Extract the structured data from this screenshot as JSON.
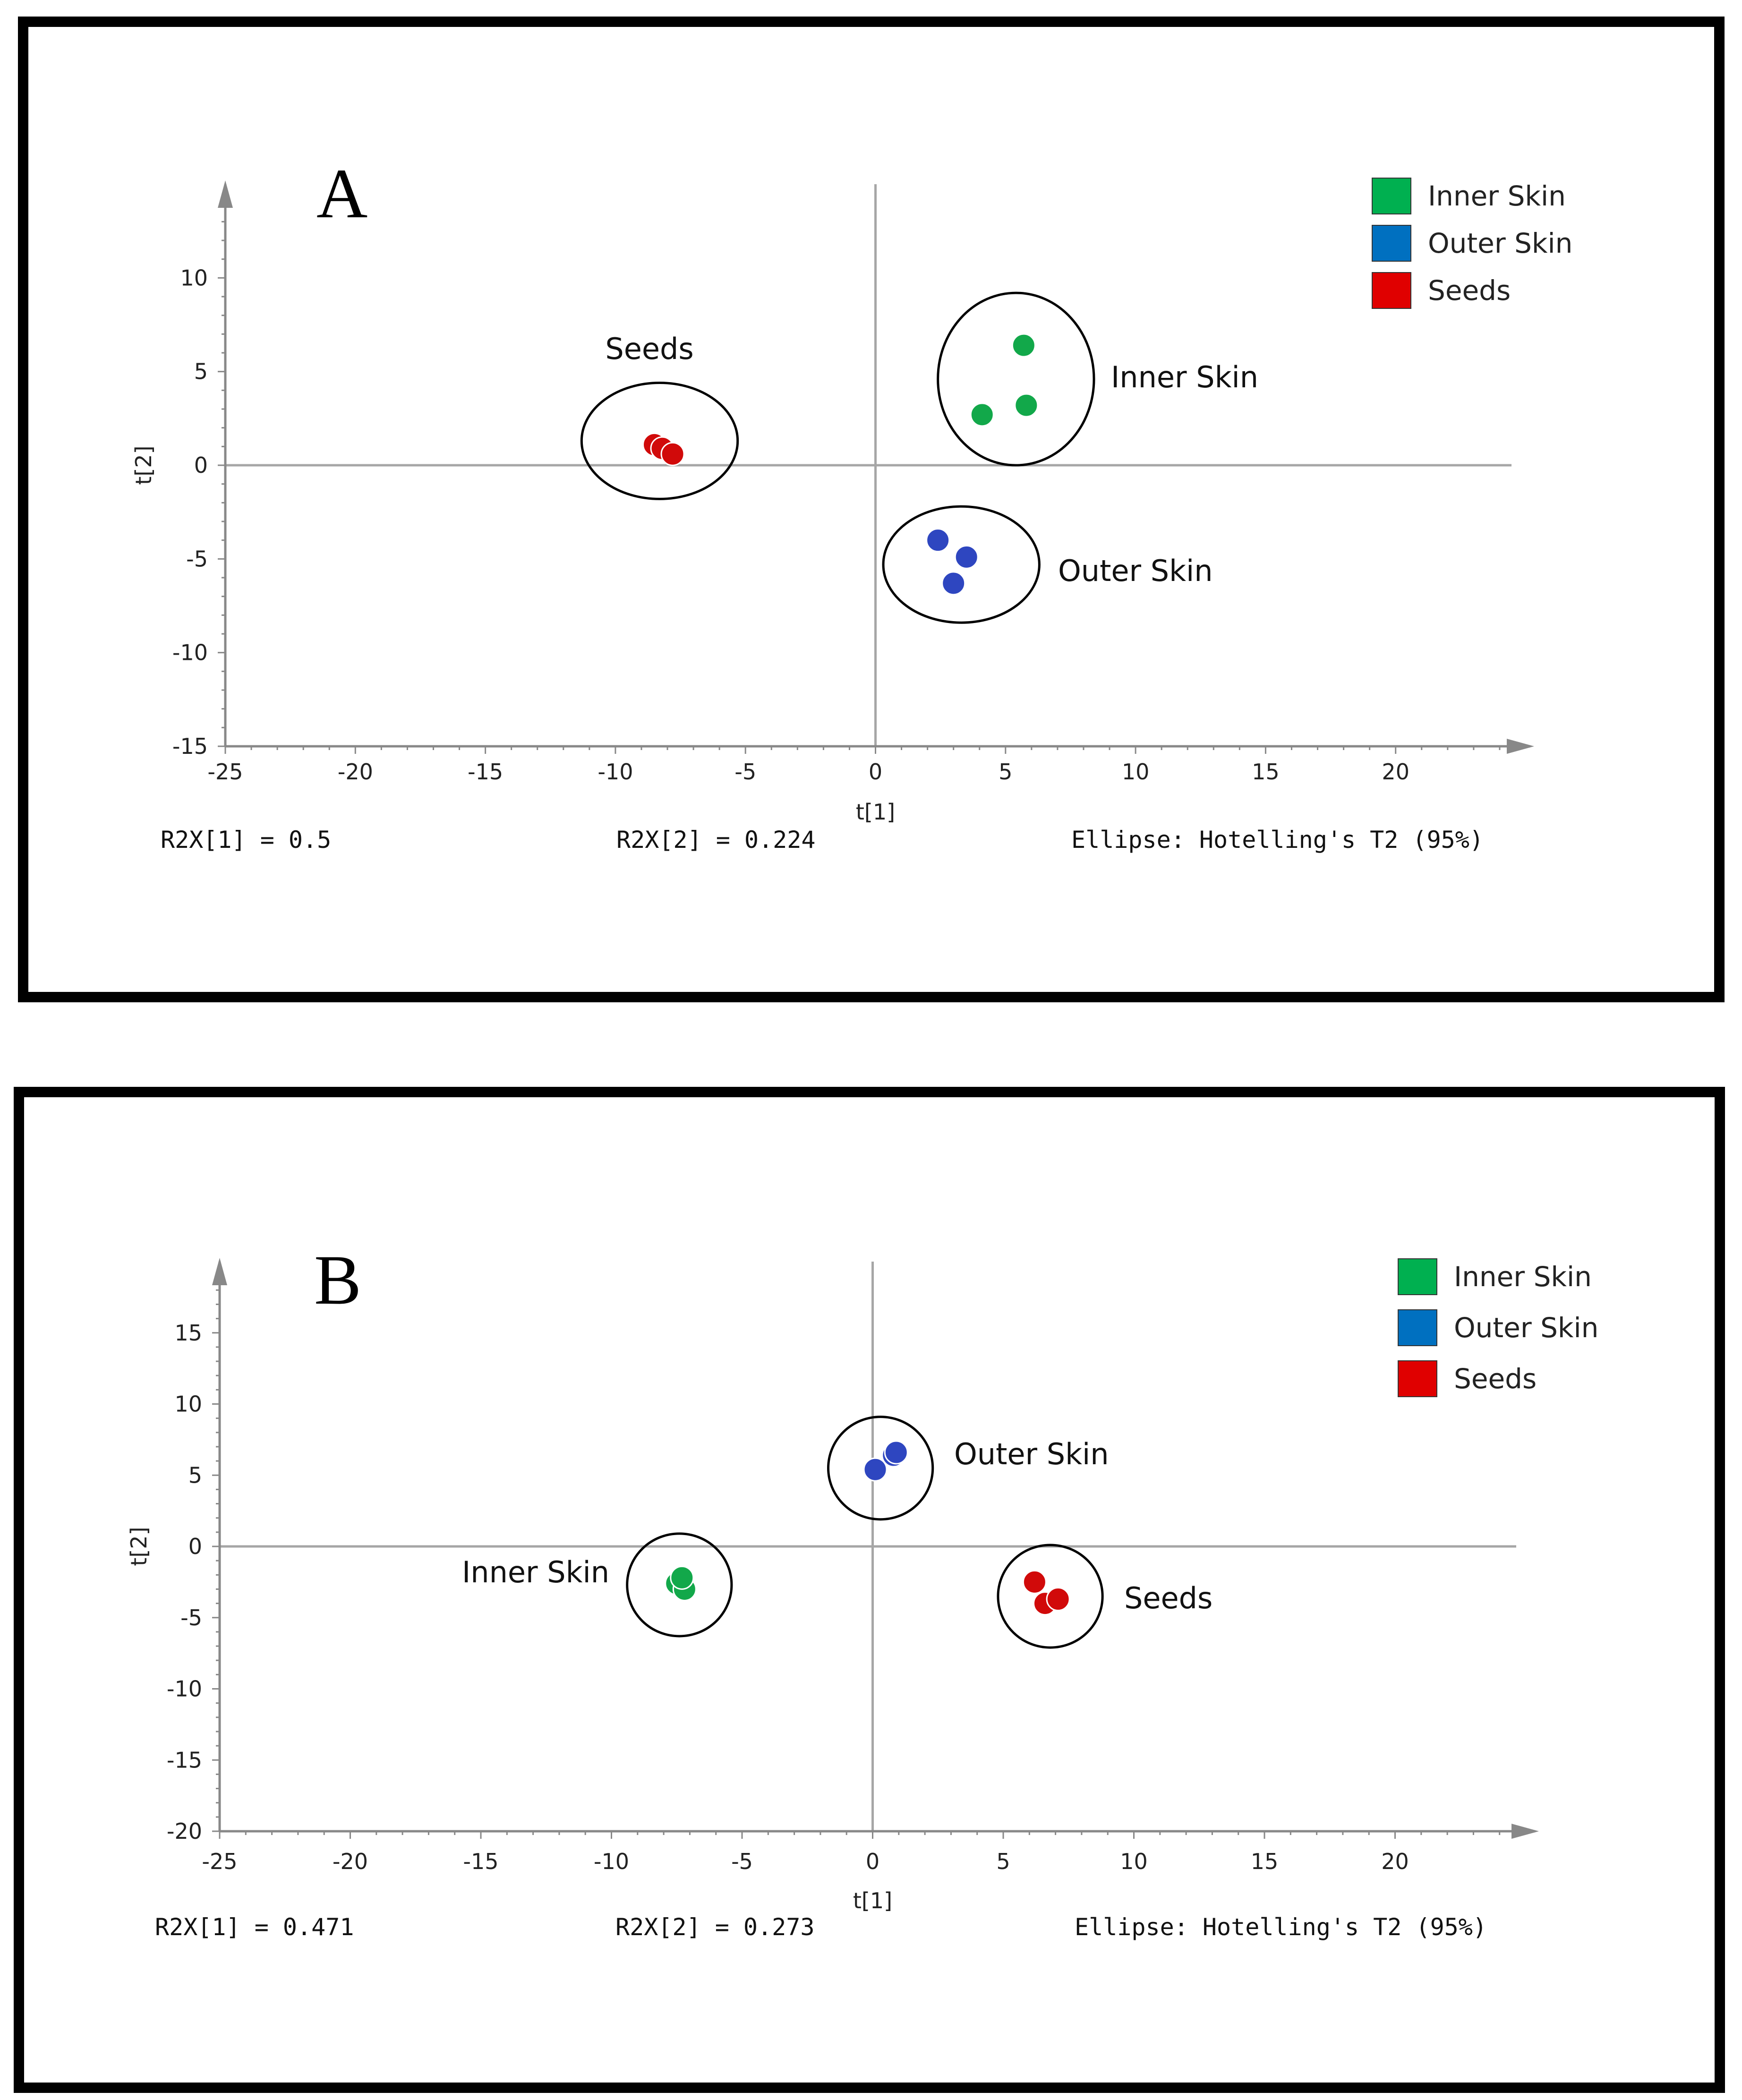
{
  "legend_colors": {
    "Inner Skin": "#00b050",
    "Outer Skin": "#0070c0",
    "Seeds": "#e00000"
  },
  "point_colors": {
    "Inner Skin": "#12a84a",
    "Outer Skin": "#2e46c0",
    "Seeds": "#d10a0a"
  },
  "chart_data": [
    {
      "type": "scatter",
      "panel_letter": "A",
      "xlabel": "t[1]",
      "ylabel": "t[2]",
      "xlim": [
        -25,
        25
      ],
      "ylim": [
        -15,
        15
      ],
      "xticks": [
        -25,
        -20,
        -15,
        -10,
        -5,
        0,
        5,
        10,
        15,
        20
      ],
      "yticks": [
        10,
        5,
        0,
        -5,
        -10,
        -15
      ],
      "legend": [
        "Inner Skin",
        "Outer Skin",
        "Seeds"
      ],
      "legend_position": "top-right",
      "series": [
        {
          "name": "Inner Skin",
          "points": [
            [
              5.7,
              6.4
            ],
            [
              5.8,
              3.2
            ],
            [
              4.1,
              2.7
            ]
          ],
          "label": "Inner Skin"
        },
        {
          "name": "Outer Skin",
          "points": [
            [
              2.4,
              -4.0
            ],
            [
              3.5,
              -4.9
            ],
            [
              3.0,
              -6.3
            ]
          ],
          "label": "Outer Skin"
        },
        {
          "name": "Seeds",
          "points": [
            [
              -8.5,
              1.1
            ],
            [
              -8.2,
              0.9
            ],
            [
              -7.8,
              0.6
            ]
          ],
          "label": "Seeds"
        }
      ],
      "ellipses": [
        {
          "group": "Seeds",
          "center": [
            -8.3,
            1.3
          ],
          "rx": 3.0,
          "ry": 3.1
        },
        {
          "group": "Inner Skin",
          "center": [
            5.4,
            4.6
          ],
          "rx": 3.0,
          "ry": 4.6
        },
        {
          "group": "Outer Skin",
          "center": [
            3.3,
            -5.3
          ],
          "rx": 3.0,
          "ry": 3.1
        }
      ],
      "stats": {
        "r2x1": "R2X[1] = 0.5",
        "r2x2": "R2X[2] = 0.224",
        "ellipse": "Ellipse: Hotelling's T2 (95%)"
      }
    },
    {
      "type": "scatter",
      "panel_letter": "B",
      "xlabel": "t[1]",
      "ylabel": "t[2]",
      "xlim": [
        -25,
        25
      ],
      "ylim": [
        -20,
        20
      ],
      "xticks": [
        -25,
        -20,
        -15,
        -10,
        -5,
        0,
        5,
        10,
        15,
        20
      ],
      "yticks": [
        15,
        10,
        5,
        0,
        -5,
        -10,
        -15,
        -20
      ],
      "legend": [
        "Inner Skin",
        "Outer Skin",
        "Seeds"
      ],
      "legend_position": "top-right",
      "series": [
        {
          "name": "Inner Skin",
          "points": [
            [
              -7.5,
              -2.6
            ],
            [
              -7.2,
              -3.0
            ],
            [
              -7.3,
              -2.2
            ]
          ],
          "label": "Inner Skin"
        },
        {
          "name": "Outer Skin",
          "points": [
            [
              0.1,
              5.4
            ],
            [
              0.8,
              6.4
            ],
            [
              0.9,
              6.6
            ]
          ],
          "label": "Outer Skin"
        },
        {
          "name": "Seeds",
          "points": [
            [
              6.2,
              -2.5
            ],
            [
              6.6,
              -4.0
            ],
            [
              7.1,
              -3.7
            ]
          ],
          "label": "Seeds"
        }
      ],
      "ellipses": [
        {
          "group": "Outer Skin",
          "center": [
            0.3,
            5.5
          ],
          "rx": 2.0,
          "ry": 3.6
        },
        {
          "group": "Inner Skin",
          "center": [
            -7.4,
            -2.7
          ],
          "rx": 2.0,
          "ry": 3.6
        },
        {
          "group": "Seeds",
          "center": [
            6.8,
            -3.5
          ],
          "rx": 2.0,
          "ry": 3.6
        }
      ],
      "stats": {
        "r2x1": "R2X[1] = 0.471",
        "r2x2": "R2X[2] = 0.273",
        "ellipse": "Ellipse: Hotelling's T2 (95%)"
      }
    }
  ]
}
